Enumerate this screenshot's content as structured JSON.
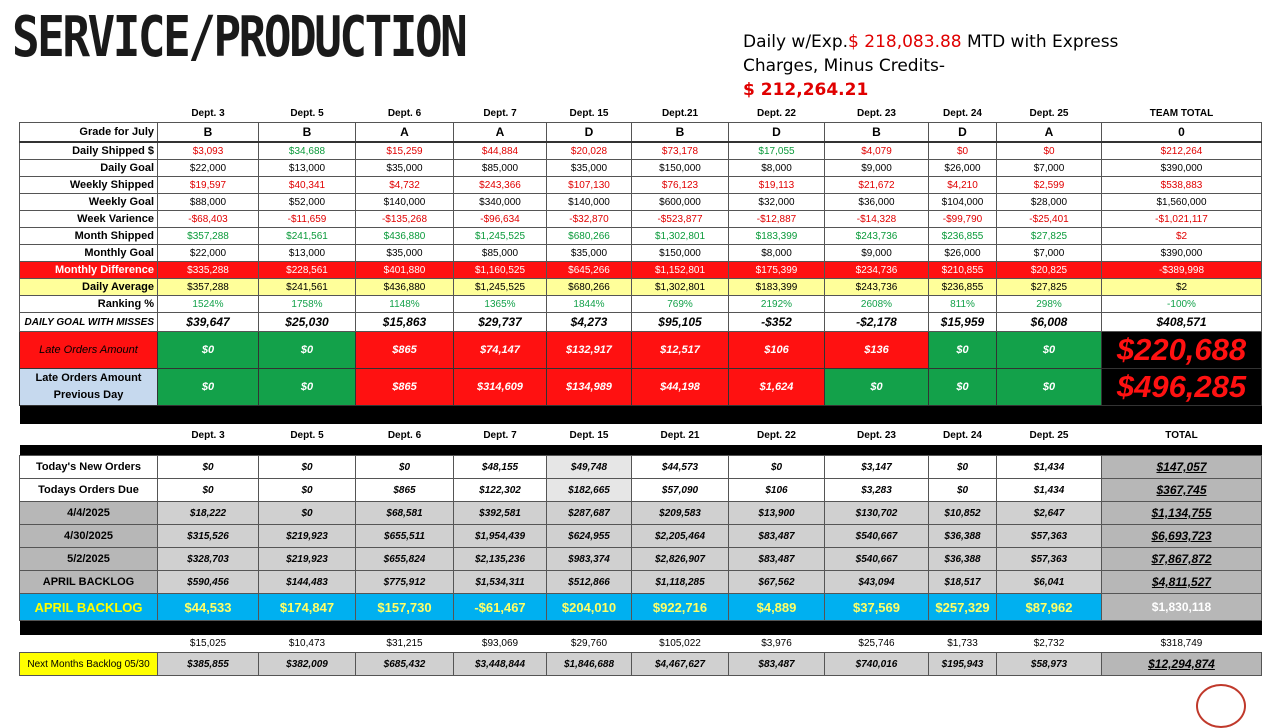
{
  "title": "SERVICE/PRODUCTION",
  "summary": {
    "line1_label": "Daily w/Exp.",
    "line1_value": "$ 218,083.88",
    "line1_rest": " MTD with Express",
    "line2": "Charges, Minus Credits-",
    "line3_value": "$ 212,264.21"
  },
  "top_table": {
    "headers": [
      "Dept. 3",
      "Dept. 5",
      "Dept. 6",
      "Dept. 7",
      "Dept. 15",
      "Dept.21",
      "Dept. 22",
      "Dept. 23",
      "Dept. 24",
      "Dept. 25",
      "TEAM TOTAL"
    ],
    "rows": [
      {
        "label": "Grade for July",
        "cells": [
          "B",
          "B",
          "A",
          "A",
          "D",
          "B",
          "D",
          "B",
          "D",
          "A",
          "0"
        ],
        "colors": [
          "blk",
          "blk",
          "blk",
          "blk",
          "blk",
          "blk",
          "blk",
          "blk",
          "blk",
          "blk",
          "blk"
        ]
      },
      {
        "label": "Daily Shipped $",
        "cells": [
          "$3,093",
          "$34,688",
          "$15,259",
          "$44,884",
          "$20,028",
          "$73,178",
          "$17,055",
          "$4,079",
          "$0",
          "$0",
          "$212,264"
        ],
        "colors": [
          "neg",
          "pos",
          "neg",
          "neg",
          "neg",
          "neg",
          "pos",
          "neg",
          "neg",
          "neg",
          "neg"
        ]
      },
      {
        "label": "Daily Goal",
        "cells": [
          "$22,000",
          "$13,000",
          "$35,000",
          "$85,000",
          "$35,000",
          "$150,000",
          "$8,000",
          "$9,000",
          "$26,000",
          "$7,000",
          "$390,000"
        ],
        "colors": [
          "blk",
          "blk",
          "blk",
          "blk",
          "blk",
          "blk",
          "blk",
          "blk",
          "blk",
          "blk",
          "blk"
        ]
      },
      {
        "label": "Weekly Shipped",
        "cells": [
          "$19,597",
          "$40,341",
          "$4,732",
          "$243,366",
          "$107,130",
          "$76,123",
          "$19,113",
          "$21,672",
          "$4,210",
          "$2,599",
          "$538,883"
        ],
        "colors": [
          "neg",
          "neg",
          "neg",
          "neg",
          "neg",
          "neg",
          "neg",
          "neg",
          "neg",
          "neg",
          "neg"
        ]
      },
      {
        "label": "Weekly Goal",
        "cells": [
          "$88,000",
          "$52,000",
          "$140,000",
          "$340,000",
          "$140,000",
          "$600,000",
          "$32,000",
          "$36,000",
          "$104,000",
          "$28,000",
          "$1,560,000"
        ],
        "colors": [
          "blk",
          "blk",
          "blk",
          "blk",
          "blk",
          "blk",
          "blk",
          "blk",
          "blk",
          "blk",
          "blk"
        ]
      },
      {
        "label": "Week Varience",
        "cells": [
          "-$68,403",
          "-$11,659",
          "-$135,268",
          "-$96,634",
          "-$32,870",
          "-$523,877",
          "-$12,887",
          "-$14,328",
          "-$99,790",
          "-$25,401",
          "-$1,021,117"
        ],
        "colors": [
          "neg",
          "neg",
          "neg",
          "neg",
          "neg",
          "neg",
          "neg",
          "neg",
          "neg",
          "neg",
          "neg"
        ]
      },
      {
        "label": "Month Shipped",
        "cells": [
          "$357,288",
          "$241,561",
          "$436,880",
          "$1,245,525",
          "$680,266",
          "$1,302,801",
          "$183,399",
          "$243,736",
          "$236,855",
          "$27,825",
          "$2"
        ],
        "colors": [
          "pos",
          "pos",
          "pos",
          "pos",
          "pos",
          "pos",
          "pos",
          "pos",
          "pos",
          "pos",
          "neg"
        ]
      },
      {
        "label": "Monthly Goal",
        "cells": [
          "$22,000",
          "$13,000",
          "$35,000",
          "$85,000",
          "$35,000",
          "$150,000",
          "$8,000",
          "$9,000",
          "$26,000",
          "$7,000",
          "$390,000"
        ],
        "colors": [
          "blk",
          "blk",
          "blk",
          "blk",
          "blk",
          "blk",
          "blk",
          "blk",
          "blk",
          "blk",
          "blk"
        ]
      }
    ],
    "monthly_difference": {
      "label": "Monthly Difference",
      "cells": [
        "$335,288",
        "$228,561",
        "$401,880",
        "$1,160,525",
        "$645,266",
        "$1,152,801",
        "$175,399",
        "$234,736",
        "$210,855",
        "$20,825",
        "-$389,998"
      ]
    },
    "daily_average": {
      "label": "Daily Average",
      "cells": [
        "$357,288",
        "$241,561",
        "$436,880",
        "$1,245,525",
        "$680,266",
        "$1,302,801",
        "$183,399",
        "$243,736",
        "$236,855",
        "$27,825",
        "$2"
      ]
    },
    "ranking": {
      "label": "Ranking %",
      "cells": [
        "1524%",
        "1758%",
        "1148%",
        "1365%",
        "1844%",
        "769%",
        "2192%",
        "2608%",
        "811%",
        "298%",
        "-100%"
      ]
    },
    "goal_misses": {
      "label": "DAILY GOAL WITH MISSES",
      "cells": [
        "$39,647",
        "$25,030",
        "$15,863",
        "$29,737",
        "$4,273",
        "$95,105",
        "-$352",
        "-$2,178",
        "$15,959",
        "$6,008",
        "$408,571"
      ]
    },
    "late_orders": {
      "label": "Late Orders Amount",
      "cells": [
        "$0",
        "$0",
        "$865",
        "$74,147",
        "$132,917",
        "$12,517",
        "$106",
        "$136",
        "$0",
        "$0"
      ],
      "fills": [
        "g",
        "g",
        "rd",
        "rd",
        "rd",
        "rd",
        "rd",
        "rd",
        "g",
        "g"
      ],
      "total": "$220,688"
    },
    "late_prev": {
      "label": "Late Orders Amount Previous Day",
      "cells": [
        "$0",
        "$0",
        "$865",
        "$314,609",
        "$134,989",
        "$44,198",
        "$1,624",
        "$0",
        "$0",
        "$0"
      ],
      "fills": [
        "g",
        "g",
        "rd",
        "rd",
        "rd",
        "rd",
        "rd",
        "g",
        "g",
        "g"
      ],
      "total": "$496,285"
    }
  },
  "bottom_table": {
    "headers": [
      "Dept. 3",
      "Dept. 5",
      "Dept. 6",
      "Dept. 7",
      "Dept. 15",
      "Dept. 21",
      "Dept. 22",
      "Dept. 23",
      "Dept. 24",
      "Dept. 25",
      "TOTAL"
    ],
    "rows": [
      {
        "label": "Today's New Orders",
        "cells": [
          "$0",
          "$0",
          "$0",
          "$48,155",
          "$49,748",
          "$44,573",
          "$0",
          "$3,147",
          "$0",
          "$1,434"
        ],
        "total": "$147,057",
        "style": "white"
      },
      {
        "label": "Todays Orders Due",
        "cells": [
          "$0",
          "$0",
          "$865",
          "$122,302",
          "$182,665",
          "$57,090",
          "$106",
          "$3,283",
          "$0",
          "$1,434"
        ],
        "total": "$367,745",
        "style": "white"
      },
      {
        "label": "4/4/2025",
        "cells": [
          "$18,222",
          "$0",
          "$68,581",
          "$392,581",
          "$287,687",
          "$209,583",
          "$13,900",
          "$130,702",
          "$10,852",
          "$2,647"
        ],
        "total": "$1,134,755",
        "style": "gray"
      },
      {
        "label": "4/30/2025",
        "cells": [
          "$315,526",
          "$219,923",
          "$655,511",
          "$1,954,439",
          "$624,955",
          "$2,205,464",
          "$83,487",
          "$540,667",
          "$36,388",
          "$57,363"
        ],
        "total": "$6,693,723",
        "style": "gray"
      },
      {
        "label": "5/2/2025",
        "cells": [
          "$328,703",
          "$219,923",
          "$655,824",
          "$2,135,236",
          "$983,374",
          "$2,826,907",
          "$83,487",
          "$540,667",
          "$36,388",
          "$57,363"
        ],
        "total": "$7,867,872",
        "style": "gray"
      },
      {
        "label": "APRIL BACKLOG",
        "cells": [
          "$590,456",
          "$144,483",
          "$775,912",
          "$1,534,311",
          "$512,866",
          "$1,118,285",
          "$67,562",
          "$43,094",
          "$18,517",
          "$6,041"
        ],
        "total": "$4,811,527",
        "style": "gray"
      }
    ],
    "april_backlog_blue": {
      "label": "APRIL BACKLOG",
      "cells": [
        "$44,533",
        "$174,847",
        "$157,730",
        "-$61,467",
        "$204,010",
        "$922,716",
        "$4,889",
        "$37,569",
        "$257,329",
        "$87,962"
      ],
      "total": "$1,830,118"
    },
    "plain_row": {
      "cells": [
        "$15,025",
        "$10,473",
        "$31,215",
        "$93,069",
        "$29,760",
        "$105,022",
        "$3,976",
        "$25,746",
        "$1,733",
        "$2,732"
      ],
      "total": "$318,749"
    },
    "next_months": {
      "label": "Next Months Backlog 05/30",
      "cells": [
        "$385,855",
        "$382,009",
        "$685,432",
        "$3,448,844",
        "$1,846,688",
        "$4,467,627",
        "$83,487",
        "$740,016",
        "$195,943",
        "$58,973"
      ],
      "total": "$12,294,874"
    }
  }
}
